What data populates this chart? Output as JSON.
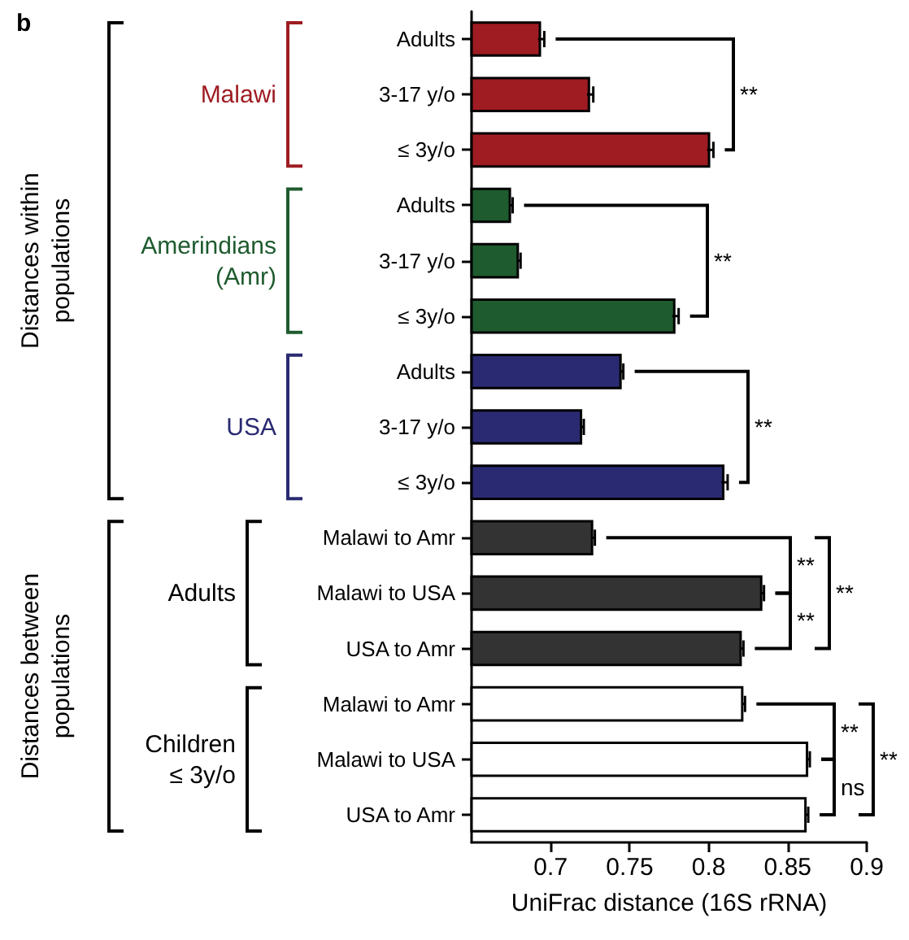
{
  "chart_data": {
    "type": "bar",
    "orientation": "horizontal",
    "title": "b",
    "xlabel": "UniFrac distance (16S rRNA)",
    "categories": [
      "Adults",
      "3-17 y/o",
      "≤ 3y/o",
      "Adults",
      "3-17 y/o",
      "≤ 3y/o",
      "Adults",
      "3-17 y/o",
      "≤ 3y/o",
      "Malawi to Amr",
      "Malawi to USA",
      "USA to Amr",
      "Malawi to Amr",
      "Malawi to USA",
      "USA to Amr"
    ],
    "values": [
      0.694,
      0.725,
      0.801,
      0.675,
      0.68,
      0.779,
      0.745,
      0.72,
      0.81,
      0.727,
      0.834,
      0.821,
      0.822,
      0.863,
      0.862
    ],
    "errors": [
      0.002,
      0.002,
      0.002,
      0.001,
      0.001,
      0.002,
      0.001,
      0.001,
      0.002,
      0.001,
      0.001,
      0.001,
      0.001,
      0.001,
      0.001
    ],
    "colors": [
      "#9e1c22",
      "#9e1c22",
      "#9e1c22",
      "#1e5b2e",
      "#1e5b2e",
      "#1e5b2e",
      "#2a2a72",
      "#2a2a72",
      "#2a2a72",
      "#333333",
      "#333333",
      "#333333",
      "#ffffff",
      "#ffffff",
      "#ffffff"
    ],
    "xlim": [
      0.65,
      0.9
    ],
    "xticks": [
      0.7,
      0.75,
      0.8,
      0.85,
      0.9
    ],
    "grid": false,
    "annotations": [
      "Malawi",
      "Amerindians\n(Amr)",
      "USA",
      "Adults",
      "Children\n≤ 3y/o",
      "Distances within\npopulations",
      "Distances between\npopulations",
      "**",
      "**",
      "**",
      "**",
      "**",
      "**",
      "**",
      "ns",
      "**"
    ]
  }
}
